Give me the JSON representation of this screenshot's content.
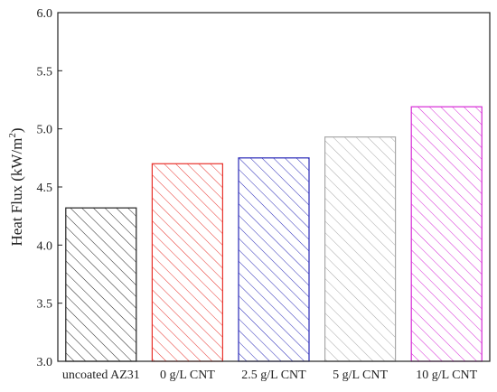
{
  "chart_data": {
    "type": "bar",
    "categories": [
      "uncoated AZ31",
      "0 g/L CNT",
      "2.5 g/L CNT",
      "5 g/L CNT",
      "10 g/L CNT"
    ],
    "values": [
      4.32,
      4.7,
      4.75,
      4.93,
      5.19
    ],
    "colors": [
      "#222222",
      "#e8322c",
      "#2a2ab8",
      "#a8a8a8",
      "#d62ad6"
    ],
    "pattern": "diagonal-hatch",
    "ylabel": "Heat Flux (kW/m",
    "ylabel_sup": "2",
    "ylabel_close": ")",
    "xlabel": "",
    "ylim": [
      3.0,
      6.0
    ],
    "yticks": [
      "3.0",
      "3.5",
      "4.0",
      "4.5",
      "5.0",
      "5.5",
      "6.0"
    ],
    "grid": false,
    "legend": "none"
  }
}
